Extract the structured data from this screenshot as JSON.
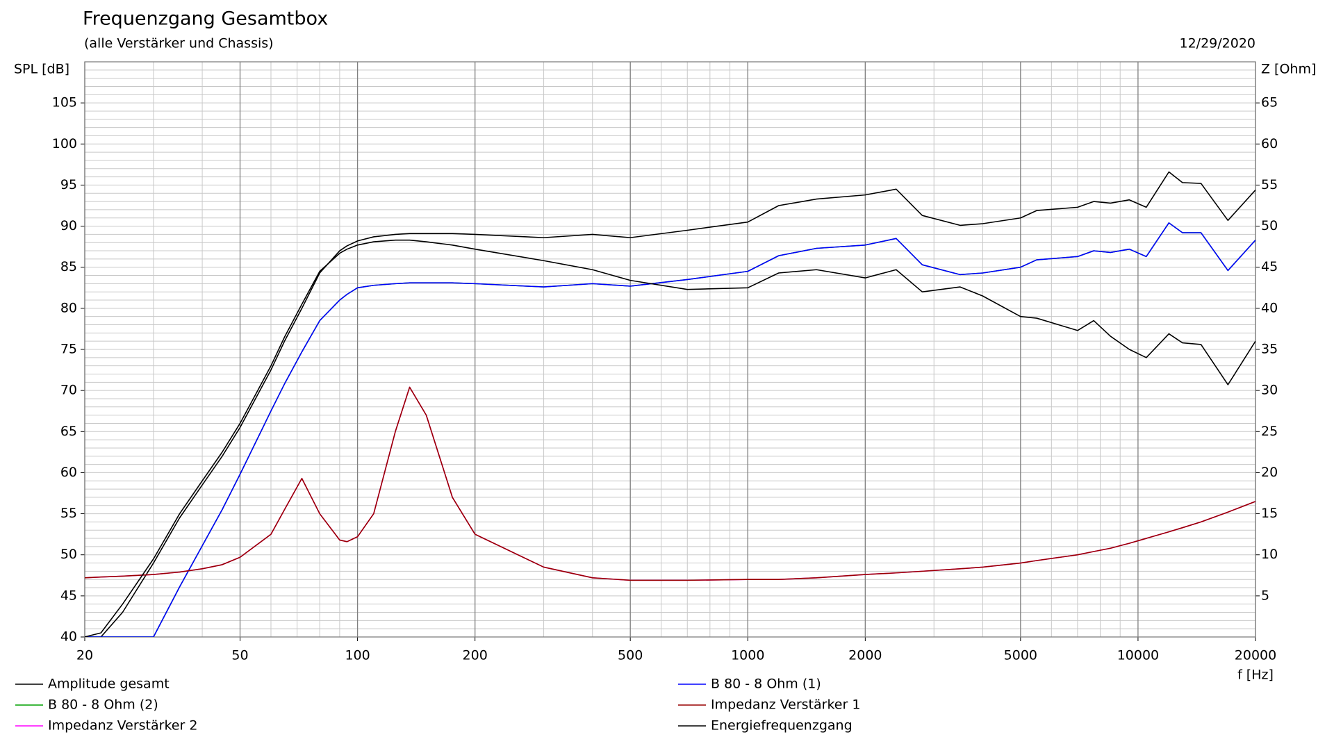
{
  "chart_data": {
    "type": "line",
    "title": "Frequenzgang Gesamtbox",
    "subtitle": "(alle Verstärker und Chassis)",
    "date": "12/29/2020",
    "ylabel": "SPL [dB]",
    "y2label": "Z [Ohm]",
    "xlabel": "f [Hz]",
    "xscale": "log",
    "grid": true,
    "minor_grid": true,
    "legend": "bottom",
    "xlim": [
      20,
      20000
    ],
    "xticks": [
      20,
      50,
      100,
      200,
      500,
      1000,
      2000,
      5000,
      10000,
      20000
    ],
    "ylim": [
      40,
      110
    ],
    "yticks": [
      40,
      45,
      50,
      55,
      60,
      65,
      70,
      75,
      80,
      85,
      90,
      95,
      100,
      105
    ],
    "y2lim": [
      0,
      70
    ],
    "y2ticks": [
      5,
      10,
      15,
      20,
      25,
      30,
      35,
      40,
      45,
      50,
      55,
      60,
      65
    ],
    "x": [
      20,
      22,
      25,
      30,
      35,
      40,
      45,
      50,
      60,
      65,
      72,
      80,
      90,
      94,
      100,
      110,
      125,
      136,
      150,
      175,
      200,
      300,
      400,
      500,
      700,
      1000,
      1200,
      1500,
      2000,
      2400,
      2800,
      3500,
      4000,
      5000,
      5500,
      7000,
      7700,
      8500,
      9500,
      10500,
      12000,
      13000,
      14500,
      17000,
      20000
    ],
    "series": [
      {
        "name": "Amplitude gesamt",
        "color": "#000000",
        "values": [
          40,
          40,
          43,
          49,
          54.5,
          58.5,
          62,
          65.5,
          72.5,
          76,
          80,
          84.3,
          87,
          87.6,
          88.2,
          88.7,
          89,
          89.1,
          89.1,
          89.1,
          89,
          88.6,
          89,
          88.6,
          89.5,
          90.5,
          92.5,
          93.3,
          93.8,
          94.5,
          91.3,
          90.1,
          90.3,
          91,
          91.9,
          92.3,
          93,
          92.8,
          93.2,
          92.3,
          96.6,
          95.3,
          95.2,
          90.7,
          94.4
        ]
      },
      {
        "name": "B 80 - 8 Ohm (2)",
        "color": "#00a000",
        "values": [
          40,
          40,
          40,
          40,
          46.1,
          51.1,
          55.5,
          59.8,
          67.5,
          70.8,
          74.7,
          78.5,
          81,
          81.7,
          82.5,
          82.8,
          83,
          83.1,
          83.1,
          83.1,
          83,
          82.6,
          83,
          82.7,
          83.5,
          84.5,
          86.4,
          87.3,
          87.7,
          88.5,
          85.3,
          84.1,
          84.3,
          85,
          85.9,
          86.3,
          87,
          86.8,
          87.2,
          86.3,
          90.4,
          89.2,
          89.2,
          84.6,
          88.3
        ]
      },
      {
        "name": "Impedanz Verstärker 2",
        "color": "#ff00ff",
        "axis": "y2",
        "values": [
          7.2,
          7.3,
          7.4,
          7.6,
          7.9,
          8.3,
          8.8,
          9.7,
          12.5,
          15.5,
          19.3,
          15,
          11.8,
          11.6,
          12.2,
          15,
          25,
          30.4,
          27,
          17,
          12.5,
          8.5,
          7.2,
          6.9,
          6.9,
          7,
          7,
          7.2,
          7.6,
          7.8,
          8,
          8.3,
          8.5,
          9,
          9.3,
          10,
          10.4,
          10.8,
          11.4,
          12,
          12.8,
          13.3,
          14,
          15.2,
          16.5
        ]
      },
      {
        "name": "B 80 - 8 Ohm (1)",
        "color": "#0000ff",
        "values": [
          40,
          40,
          40,
          40,
          46.1,
          51.1,
          55.5,
          59.8,
          67.5,
          70.8,
          74.7,
          78.5,
          81,
          81.7,
          82.5,
          82.8,
          83,
          83.1,
          83.1,
          83.1,
          83,
          82.6,
          83,
          82.7,
          83.5,
          84.5,
          86.4,
          87.3,
          87.7,
          88.5,
          85.3,
          84.1,
          84.3,
          85,
          85.9,
          86.3,
          87,
          86.8,
          87.2,
          86.3,
          90.4,
          89.2,
          89.2,
          84.6,
          88.3
        ]
      },
      {
        "name": "Impedanz Verstärker 1",
        "color": "#990000",
        "axis": "y2",
        "values": [
          7.2,
          7.3,
          7.4,
          7.6,
          7.9,
          8.3,
          8.8,
          9.7,
          12.5,
          15.5,
          19.3,
          15,
          11.8,
          11.6,
          12.2,
          15,
          25,
          30.4,
          27,
          17,
          12.5,
          8.5,
          7.2,
          6.9,
          6.9,
          7,
          7,
          7.2,
          7.6,
          7.8,
          8,
          8.3,
          8.5,
          9,
          9.3,
          10,
          10.4,
          10.8,
          11.4,
          12,
          12.8,
          13.3,
          14,
          15.2,
          16.5
        ]
      },
      {
        "name": "Energiefrequenzgang",
        "color": "#000000",
        "values": [
          40,
          40.5,
          44,
          49.5,
          55,
          59,
          62.5,
          66,
          73,
          76.5,
          80.5,
          84.5,
          86.7,
          87.2,
          87.7,
          88.1,
          88.3,
          88.3,
          88.1,
          87.7,
          87.2,
          85.8,
          84.7,
          83.4,
          82.3,
          82.5,
          84.3,
          84.7,
          83.7,
          84.7,
          82,
          82.6,
          81.5,
          79,
          78.8,
          77.3,
          78.5,
          76.6,
          75,
          74,
          76.9,
          75.8,
          75.6,
          70.7,
          76
        ]
      }
    ]
  }
}
